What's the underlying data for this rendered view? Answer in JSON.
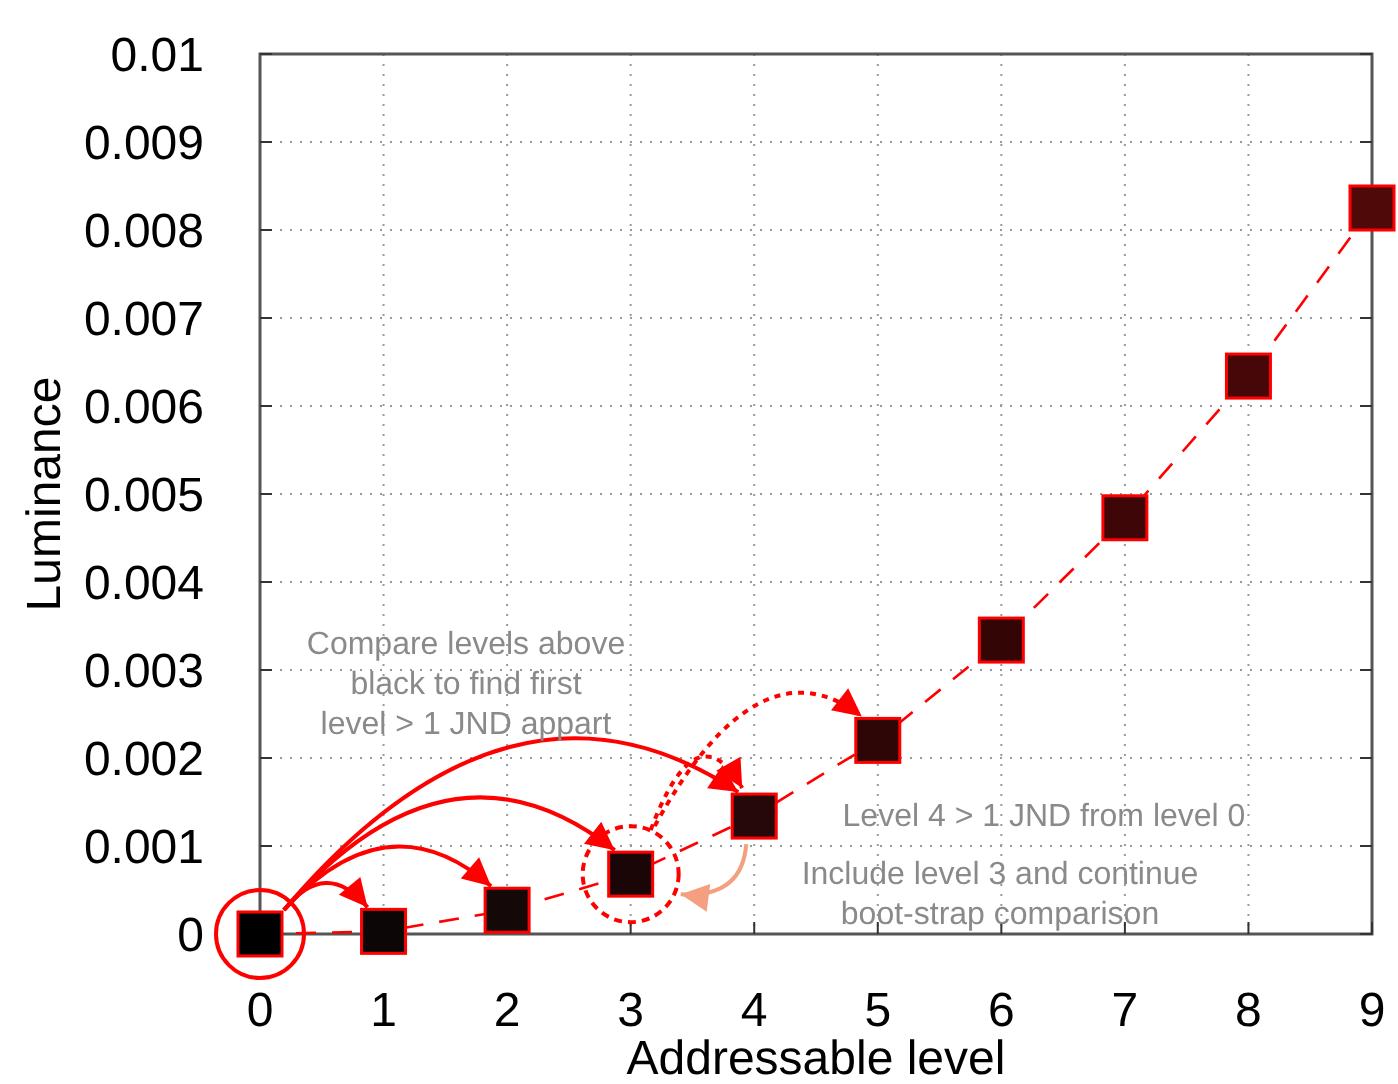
{
  "chart_data": {
    "type": "line",
    "xlabel": "Addressable level",
    "ylabel": "Luminance",
    "x": [
      0,
      1,
      2,
      3,
      4,
      5,
      6,
      7,
      8,
      9
    ],
    "series": [
      {
        "color": "#ff0000",
        "colors": [
          "#000000",
          "#0c0606",
          "#150808",
          "#1a0606",
          "#260808",
          "#2e0606",
          "#340505",
          "#3e0606",
          "#450707",
          "#4f0909"
        ],
        "values": [
          0,
          3e-05,
          0.00027,
          0.00068,
          0.00134,
          0.0022,
          0.00334,
          0.00473,
          0.00634,
          0.00825
        ]
      }
    ],
    "xlim": [
      0,
      9
    ],
    "xticks": [
      0,
      1,
      2,
      3,
      4,
      5,
      6,
      7,
      8,
      9
    ],
    "ylim": [
      0,
      0.01
    ],
    "yticks": [
      0,
      0.001,
      0.002,
      0.003,
      0.004,
      0.005,
      0.006,
      0.007,
      0.008,
      0.009,
      0.01
    ],
    "grid": true,
    "marker": "square",
    "line_style": "dashed",
    "annotations": [
      "Compare levels above\nblack to find first\nlevel > 1 JND appart",
      "Level 4 > 1 JND from level 0",
      "Include level 3 and continue\nboot-strap comparison"
    ]
  }
}
